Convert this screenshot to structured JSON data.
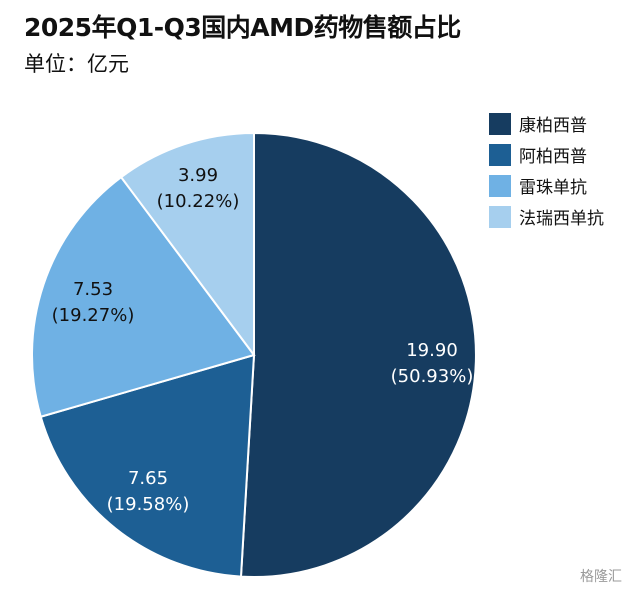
{
  "title": "2025年Q1-Q3国内AMD药物售额占比",
  "subtitle": "单位：亿元",
  "watermark": "格隆汇",
  "chart_data": {
    "type": "pie",
    "title": "2025年Q1-Q3国内AMD药物售额占比",
    "unit": "单位：亿元",
    "legend_position": "top-right",
    "slices": [
      {
        "name": "康柏西普",
        "value": 19.9,
        "percent_label": "(50.93%)",
        "value_label": "19.90",
        "color": "#163c60"
      },
      {
        "name": "阿柏西普",
        "value": 7.65,
        "percent_label": "(19.58%)",
        "value_label": "7.65",
        "color": "#1d5f94"
      },
      {
        "name": "雷珠单抗",
        "value": 7.53,
        "percent_label": "(19.27%)",
        "value_label": "7.53",
        "color": "#6fb1e4"
      },
      {
        "name": "法瑞西单抗",
        "value": 3.99,
        "percent_label": "(10.22%)",
        "value_label": "3.99",
        "color": "#a6cfee"
      }
    ]
  }
}
